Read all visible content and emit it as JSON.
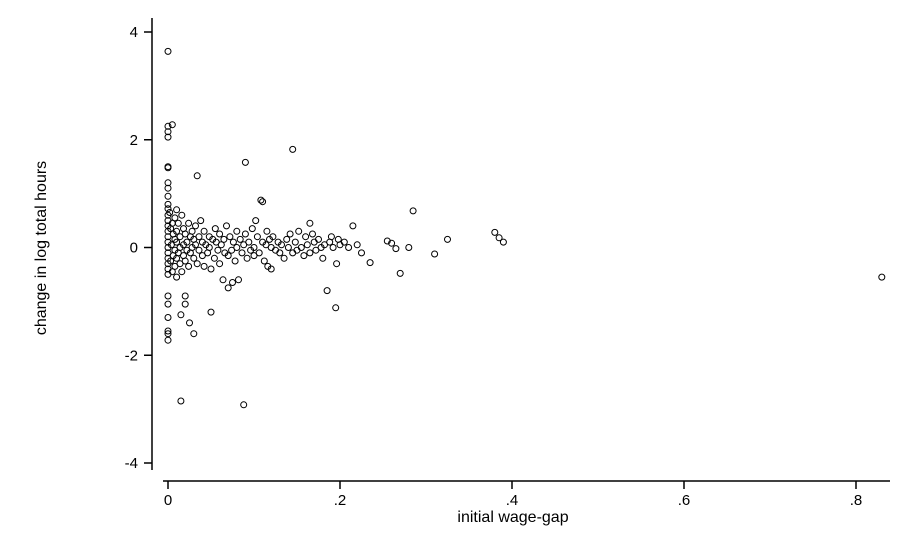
{
  "chart_data": {
    "type": "scatter",
    "title": "",
    "xlabel": "initial wage-gap",
    "ylabel": "change in log total hours",
    "xlim": [
      0,
      0.83
    ],
    "ylim": [
      -4,
      4
    ],
    "xticks": [
      {
        "value": 0,
        "label": "0"
      },
      {
        "value": 0.2,
        "label": ".2"
      },
      {
        "value": 0.4,
        "label": ".4"
      },
      {
        "value": 0.6,
        "label": ".6"
      },
      {
        "value": 0.8,
        "label": ".8"
      }
    ],
    "yticks": [
      {
        "value": -4,
        "label": "-4"
      },
      {
        "value": -2,
        "label": "-2"
      },
      {
        "value": 0,
        "label": "0"
      },
      {
        "value": 2,
        "label": "2"
      },
      {
        "value": 4,
        "label": "4"
      }
    ],
    "grid": false,
    "marker": "hollow-circle",
    "colors": {
      "marker": "#000000",
      "axis": "#000000",
      "background": "#ffffff"
    },
    "points": [
      [
        0,
        3.64
      ],
      [
        0,
        2.25
      ],
      [
        0.005,
        2.28
      ],
      [
        0,
        2.15
      ],
      [
        0,
        2.05
      ],
      [
        0,
        1.5
      ],
      [
        0,
        1.48
      ],
      [
        0,
        1.2
      ],
      [
        0,
        1.1
      ],
      [
        0,
        0.95
      ],
      [
        0,
        0.8
      ],
      [
        0,
        0.72
      ],
      [
        0,
        0.6
      ],
      [
        0,
        0.5
      ],
      [
        0,
        0.4
      ],
      [
        0,
        0.3
      ],
      [
        0,
        0.2
      ],
      [
        0,
        0.1
      ],
      [
        0,
        0.0
      ],
      [
        0,
        -0.1
      ],
      [
        0,
        -0.2
      ],
      [
        0,
        -0.3
      ],
      [
        0,
        -0.4
      ],
      [
        0,
        -0.5
      ],
      [
        0,
        -0.9
      ],
      [
        0,
        -1.05
      ],
      [
        0,
        -1.3
      ],
      [
        0,
        -1.55
      ],
      [
        0,
        -1.6
      ],
      [
        0,
        -1.72
      ],
      [
        0.002,
        0.65
      ],
      [
        0.003,
        0.35
      ],
      [
        0.004,
        0.05
      ],
      [
        0.003,
        -0.25
      ],
      [
        0.005,
        0.45
      ],
      [
        0.005,
        -0.45
      ],
      [
        0.006,
        0.25
      ],
      [
        0.006,
        -0.15
      ],
      [
        0.008,
        0.55
      ],
      [
        0.008,
        0.15
      ],
      [
        0.008,
        -0.05
      ],
      [
        0.008,
        -0.35
      ],
      [
        0.01,
        0.7
      ],
      [
        0.01,
        0.3
      ],
      [
        0.01,
        0.1
      ],
      [
        0.01,
        -0.2
      ],
      [
        0.01,
        -0.55
      ],
      [
        0.012,
        0.45
      ],
      [
        0.012,
        -0.1
      ],
      [
        0.014,
        0.2
      ],
      [
        0.014,
        0.0
      ],
      [
        0.014,
        -0.3
      ],
      [
        0.015,
        -1.25
      ],
      [
        0.015,
        -2.85
      ],
      [
        0.016,
        0.6
      ],
      [
        0.016,
        -0.45
      ],
      [
        0.018,
        0.35
      ],
      [
        0.018,
        0.05
      ],
      [
        0.018,
        -0.15
      ],
      [
        0.02,
        -0.9
      ],
      [
        0.02,
        -1.05
      ],
      [
        0.02,
        0.25
      ],
      [
        0.02,
        -0.25
      ],
      [
        0.022,
        0.1
      ],
      [
        0.022,
        -0.05
      ],
      [
        0.024,
        0.45
      ],
      [
        0.024,
        -0.35
      ],
      [
        0.025,
        -1.4
      ],
      [
        0.026,
        0.2
      ],
      [
        0.026,
        -0.1
      ],
      [
        0.028,
        0.3
      ],
      [
        0.028,
        0.0
      ],
      [
        0.03,
        -1.6
      ],
      [
        0.03,
        0.15
      ],
      [
        0.03,
        -0.2
      ],
      [
        0.032,
        0.4
      ],
      [
        0.032,
        0.05
      ],
      [
        0.034,
        1.33
      ],
      [
        0.034,
        -0.3
      ],
      [
        0.036,
        0.2
      ],
      [
        0.036,
        -0.05
      ],
      [
        0.038,
        0.5
      ],
      [
        0.04,
        0.1
      ],
      [
        0.04,
        -0.15
      ],
      [
        0.042,
        0.3
      ],
      [
        0.042,
        -0.35
      ],
      [
        0.044,
        0.05
      ],
      [
        0.046,
        -0.1
      ],
      [
        0.048,
        0.2
      ],
      [
        0.048,
        0.0
      ],
      [
        0.05,
        -0.4
      ],
      [
        0.05,
        -1.2
      ],
      [
        0.052,
        0.15
      ],
      [
        0.054,
        -0.2
      ],
      [
        0.055,
        0.35
      ],
      [
        0.056,
        0.1
      ],
      [
        0.058,
        -0.05
      ],
      [
        0.06,
        0.25
      ],
      [
        0.06,
        -0.3
      ],
      [
        0.062,
        0.05
      ],
      [
        0.064,
        -0.6
      ],
      [
        0.065,
        0.15
      ],
      [
        0.066,
        -0.1
      ],
      [
        0.068,
        0.4
      ],
      [
        0.07,
        -0.15
      ],
      [
        0.07,
        -0.75
      ],
      [
        0.072,
        0.2
      ],
      [
        0.074,
        -0.05
      ],
      [
        0.075,
        -0.65
      ],
      [
        0.076,
        0.1
      ],
      [
        0.078,
        -0.25
      ],
      [
        0.08,
        0.3
      ],
      [
        0.08,
        0.0
      ],
      [
        0.082,
        -0.6
      ],
      [
        0.084,
        0.15
      ],
      [
        0.086,
        -0.1
      ],
      [
        0.088,
        0.05
      ],
      [
        0.088,
        -2.92
      ],
      [
        0.09,
        1.58
      ],
      [
        0.09,
        0.25
      ],
      [
        0.092,
        -0.2
      ],
      [
        0.094,
        0.1
      ],
      [
        0.096,
        -0.05
      ],
      [
        0.098,
        0.35
      ],
      [
        0.1,
        0.0
      ],
      [
        0.1,
        -0.15
      ],
      [
        0.102,
        0.5
      ],
      [
        0.104,
        0.2
      ],
      [
        0.106,
        -0.1
      ],
      [
        0.108,
        0.88
      ],
      [
        0.11,
        0.85
      ],
      [
        0.11,
        0.1
      ],
      [
        0.112,
        -0.25
      ],
      [
        0.114,
        0.05
      ],
      [
        0.115,
        0.3
      ],
      [
        0.116,
        -0.35
      ],
      [
        0.118,
        0.15
      ],
      [
        0.12,
        0.0
      ],
      [
        0.12,
        -0.4
      ],
      [
        0.122,
        0.2
      ],
      [
        0.125,
        -0.05
      ],
      [
        0.128,
        0.1
      ],
      [
        0.13,
        -0.1
      ],
      [
        0.132,
        0.05
      ],
      [
        0.135,
        -0.2
      ],
      [
        0.138,
        0.15
      ],
      [
        0.14,
        0.0
      ],
      [
        0.142,
        0.25
      ],
      [
        0.145,
        1.82
      ],
      [
        0.145,
        -0.1
      ],
      [
        0.148,
        0.1
      ],
      [
        0.15,
        -0.05
      ],
      [
        0.152,
        0.3
      ],
      [
        0.155,
        0.0
      ],
      [
        0.158,
        -0.15
      ],
      [
        0.16,
        0.2
      ],
      [
        0.162,
        0.05
      ],
      [
        0.165,
        0.45
      ],
      [
        0.165,
        -0.1
      ],
      [
        0.168,
        0.25
      ],
      [
        0.17,
        0.1
      ],
      [
        0.172,
        -0.05
      ],
      [
        0.175,
        0.15
      ],
      [
        0.178,
        0.0
      ],
      [
        0.18,
        -0.2
      ],
      [
        0.182,
        0.05
      ],
      [
        0.185,
        -0.8
      ],
      [
        0.188,
        0.1
      ],
      [
        0.19,
        0.2
      ],
      [
        0.192,
        0.0
      ],
      [
        0.195,
        -1.12
      ],
      [
        0.196,
        -0.3
      ],
      [
        0.198,
        0.15
      ],
      [
        0.2,
        0.05
      ],
      [
        0.205,
        0.1
      ],
      [
        0.21,
        0.0
      ],
      [
        0.215,
        0.4
      ],
      [
        0.22,
        0.05
      ],
      [
        0.225,
        -0.1
      ],
      [
        0.235,
        -0.28
      ],
      [
        0.255,
        0.12
      ],
      [
        0.26,
        0.08
      ],
      [
        0.265,
        -0.02
      ],
      [
        0.27,
        -0.48
      ],
      [
        0.28,
        0.0
      ],
      [
        0.285,
        0.68
      ],
      [
        0.31,
        -0.12
      ],
      [
        0.325,
        0.15
      ],
      [
        0.38,
        0.28
      ],
      [
        0.385,
        0.18
      ],
      [
        0.39,
        0.1
      ],
      [
        0.83,
        -0.55
      ]
    ]
  }
}
